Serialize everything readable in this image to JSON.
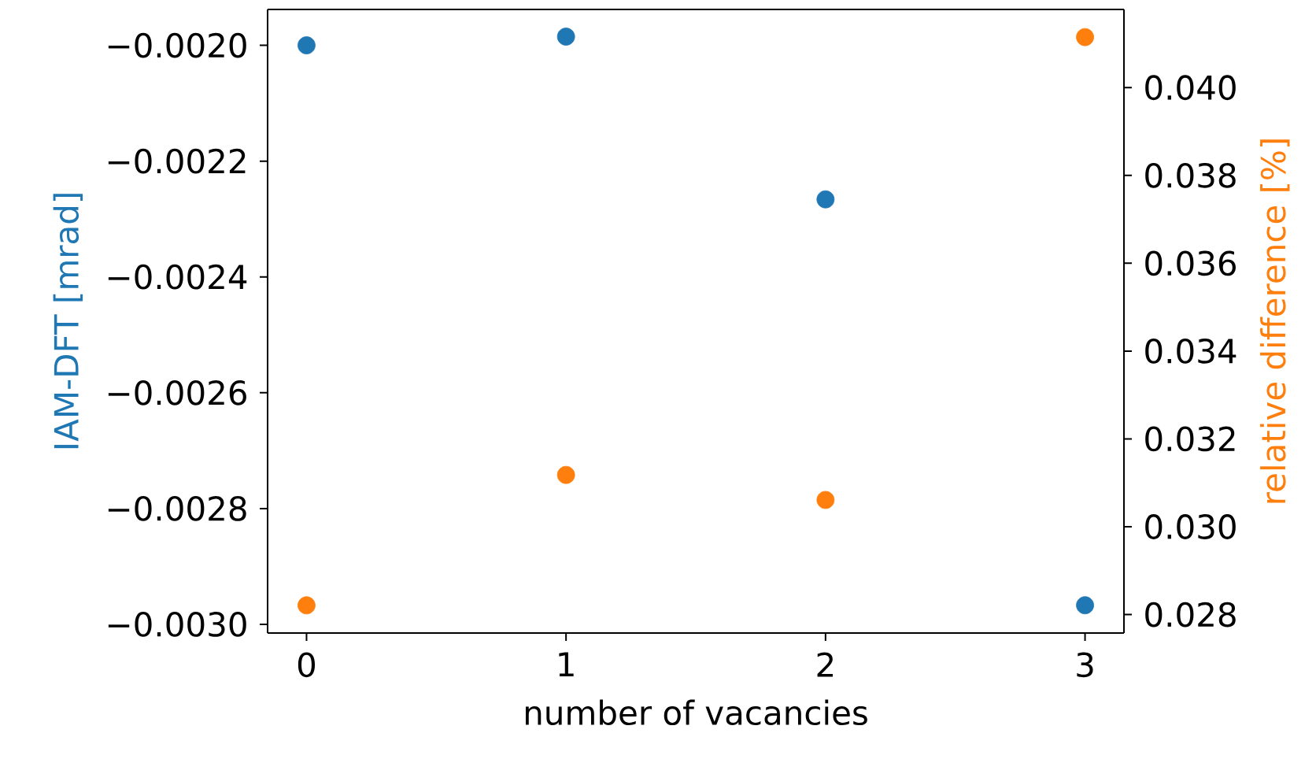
{
  "chart_data": {
    "type": "scatter",
    "xlabel": "number of vacancies",
    "ylabel": "IAM-DFT [mrad]",
    "y2label": "relative difference [%]",
    "x": [
      0,
      1,
      2,
      3
    ],
    "xlim": [
      -0.15,
      3.15
    ],
    "xticks": [
      0,
      1,
      2,
      3
    ],
    "ylim": [
      -0.003015,
      -0.001938
    ],
    "yticks": [
      {
        "value": -0.002,
        "label": "−0.0020"
      },
      {
        "value": -0.0022,
        "label": "−0.0022"
      },
      {
        "value": -0.0024,
        "label": "−0.0024"
      },
      {
        "value": -0.0026,
        "label": "−0.0026"
      },
      {
        "value": -0.0028,
        "label": "−0.0028"
      },
      {
        "value": -0.003,
        "label": "−0.0030"
      }
    ],
    "y2lim": [
      0.02758,
      0.04178
    ],
    "y2ticks": [
      {
        "value": 0.028,
        "label": "0.028"
      },
      {
        "value": 0.03,
        "label": "0.030"
      },
      {
        "value": 0.032,
        "label": "0.032"
      },
      {
        "value": 0.034,
        "label": "0.034"
      },
      {
        "value": 0.036,
        "label": "0.036"
      },
      {
        "value": 0.038,
        "label": "0.038"
      },
      {
        "value": 0.04,
        "label": "0.040"
      }
    ],
    "marker": "circle",
    "grid": false,
    "series": [
      {
        "color": "#1f77b4",
        "values": [
          -0.002,
          -0.001985,
          -0.002266,
          -0.002967
        ]
      },
      {
        "color": "#ff7f0e",
        "axis": "y2",
        "values": [
          0.02821,
          0.03118,
          0.03061,
          0.04115
        ]
      }
    ]
  }
}
